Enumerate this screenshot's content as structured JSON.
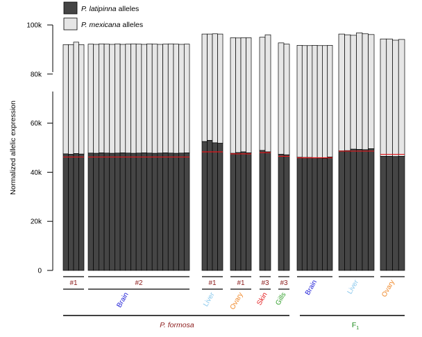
{
  "chart_data": {
    "type": "bar",
    "stacked": true,
    "title": "",
    "xlabel": "",
    "ylabel": "Normalized allelic expression",
    "ylim": [
      0,
      100000
    ],
    "yticks": [
      {
        "value": 0,
        "label": "0"
      },
      {
        "value": 20000,
        "label": "20k"
      },
      {
        "value": 40000,
        "label": "40k"
      },
      {
        "value": 60000,
        "label": "60k"
      },
      {
        "value": 80000,
        "label": "80k"
      },
      {
        "value": 100000,
        "label": "100k"
      }
    ],
    "legend": {
      "placement": "top-left",
      "entries": [
        {
          "italic": "P. latipinna",
          "rest": " alleles",
          "color": "#454545"
        },
        {
          "italic": "P. mexicana",
          "rest": " alleles",
          "color": "#e6e6e6"
        }
      ]
    },
    "colors": {
      "latipinna": "#454545",
      "mexicana": "#e6e6e6",
      "reference_line": "#e0161b"
    },
    "groups": [
      {
        "species": "P. formosa",
        "tissue": "Brain",
        "individual": "#1",
        "totals": [
          92000,
          92000,
          93000,
          92000
        ],
        "latipinna": [
          47500,
          47300,
          47600,
          47400
        ],
        "reference": 46200
      },
      {
        "species": "P. formosa",
        "tissue": "Brain",
        "individual": "#2",
        "totals": [
          92200,
          92100,
          92300,
          92200,
          92100,
          92300,
          92100,
          92200,
          92300,
          92200,
          92100,
          92300,
          92200,
          92100,
          92200,
          92300,
          92200,
          92100,
          92200
        ],
        "latipinna": [
          47800,
          47700,
          47900,
          47800,
          47700,
          47800,
          47900,
          47800,
          47700,
          47800,
          47900,
          47800,
          47700,
          47800,
          47900,
          47800,
          47700,
          47800,
          47900
        ],
        "reference": 46200
      },
      {
        "species": "P. formosa",
        "tissue": "Liver",
        "individual": "#1",
        "totals": [
          96300,
          96300,
          96400,
          96300
        ],
        "latipinna": [
          52500,
          53000,
          52000,
          51800
        ],
        "reference": 48300
      },
      {
        "species": "P. formosa",
        "tissue": "Ovary",
        "individual": "#1",
        "totals": [
          94800,
          94700,
          94800,
          94800
        ],
        "latipinna": [
          47700,
          48000,
          48300,
          47900
        ],
        "reference": 47500
      },
      {
        "species": "P. formosa",
        "tissue": "Skin",
        "individual": "#3",
        "totals": [
          95000,
          96000
        ],
        "latipinna": [
          48900,
          48300
        ],
        "reference": 48000
      },
      {
        "species": "P. formosa",
        "tissue": "Gills",
        "individual": "#3",
        "totals": [
          92700,
          92200
        ],
        "latipinna": [
          47300,
          47100
        ],
        "reference": 46500
      },
      {
        "species": "F1",
        "tissue": "Brain",
        "individual": "",
        "totals": [
          91700,
          91600,
          91600,
          91700,
          91600,
          91600,
          91700
        ],
        "latipinna": [
          46100,
          46000,
          46000,
          45900,
          45800,
          45700,
          46200
        ],
        "reference": 45900
      },
      {
        "species": "F1",
        "tissue": "Liver",
        "individual": "",
        "totals": [
          96300,
          96000,
          95800,
          96800,
          96400,
          96100
        ],
        "latipinna": [
          48700,
          48800,
          49400,
          49300,
          49200,
          49600
        ],
        "reference": 48600
      },
      {
        "species": "F1",
        "tissue": "Ovary",
        "individual": "",
        "totals": [
          94300,
          94300,
          93800,
          94100
        ],
        "latipinna": [
          46500,
          46500,
          46400,
          46500
        ],
        "reference": 47300
      }
    ],
    "individual_labels": [
      {
        "text": "#1",
        "color": "#8b1a1a"
      },
      {
        "text": "#2",
        "color": "#8b1a1a"
      },
      {
        "text": "#1",
        "color": "#8b1a1a"
      },
      {
        "text": "#1",
        "color": "#8b1a1a"
      },
      {
        "text": "#3",
        "color": "#8b1a1a"
      },
      {
        "text": "#3",
        "color": "#8b1a1a"
      }
    ],
    "tissue_labels": [
      {
        "text": "Brain",
        "color": "#1a1ad6"
      },
      {
        "text": "Liver",
        "color": "#87c7ec"
      },
      {
        "text": "Ovary",
        "color": "#f08a2c"
      },
      {
        "text": "Skin",
        "color": "#e31a1c"
      },
      {
        "text": "Gills",
        "color": "#33a02c"
      },
      {
        "text": "Brain",
        "color": "#1a1ad6"
      },
      {
        "text": "Liver",
        "color": "#87c7ec"
      },
      {
        "text": "Ovary",
        "color": "#f08a2c"
      }
    ],
    "species_labels": [
      {
        "text": "P. formosa",
        "italic": true,
        "color": "#8b1a1a"
      },
      {
        "main": "F",
        "sub": "1",
        "italic": false,
        "color": "#1a8a1a"
      }
    ]
  }
}
